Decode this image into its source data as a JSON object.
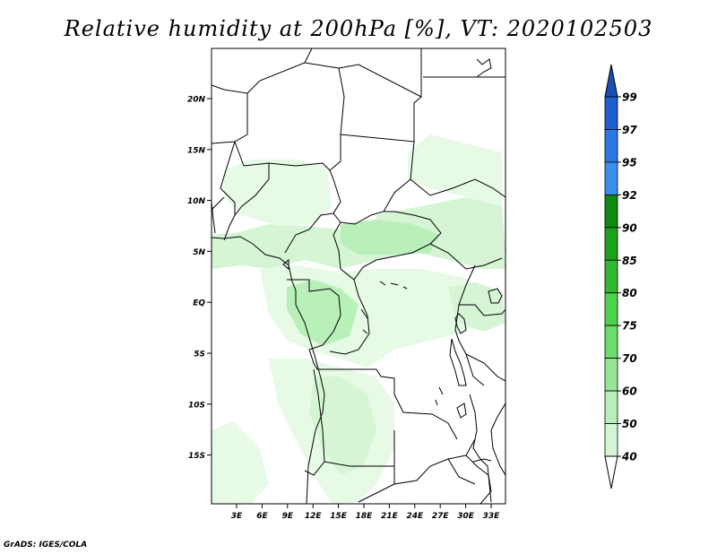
{
  "title": "Relative humidity at 200hPa [%], VT: 2020102503",
  "credit": "GrADS: IGES/COLA",
  "map": {
    "lat_ticks": [
      "20N",
      "15N",
      "10N",
      "5N",
      "EQ",
      "5S",
      "10S",
      "15S"
    ],
    "lon_ticks": [
      "3E",
      "6E",
      "9E",
      "12E",
      "15E",
      "18E",
      "21E",
      "24E",
      "27E",
      "30E",
      "33E"
    ]
  },
  "colorbar": {
    "levels": [
      {
        "label": "99",
        "color": "#1e5fd0"
      },
      {
        "label": "97",
        "color": "#2b78e4"
      },
      {
        "label": "95",
        "color": "#3d8fee"
      },
      {
        "label": "92",
        "color": "#0f8a0f"
      },
      {
        "label": "90",
        "color": "#1ea01e"
      },
      {
        "label": "85",
        "color": "#33b833"
      },
      {
        "label": "80",
        "color": "#4fd14f"
      },
      {
        "label": "75",
        "color": "#6cdc6c"
      },
      {
        "label": "70",
        "color": "#97e697"
      },
      {
        "label": "60",
        "color": "#b9efb9"
      },
      {
        "label": "50",
        "color": "#d5f5d5"
      },
      {
        "label": "40",
        "color": "#ecfbec"
      }
    ],
    "top_color": "#1a4fb8"
  }
}
